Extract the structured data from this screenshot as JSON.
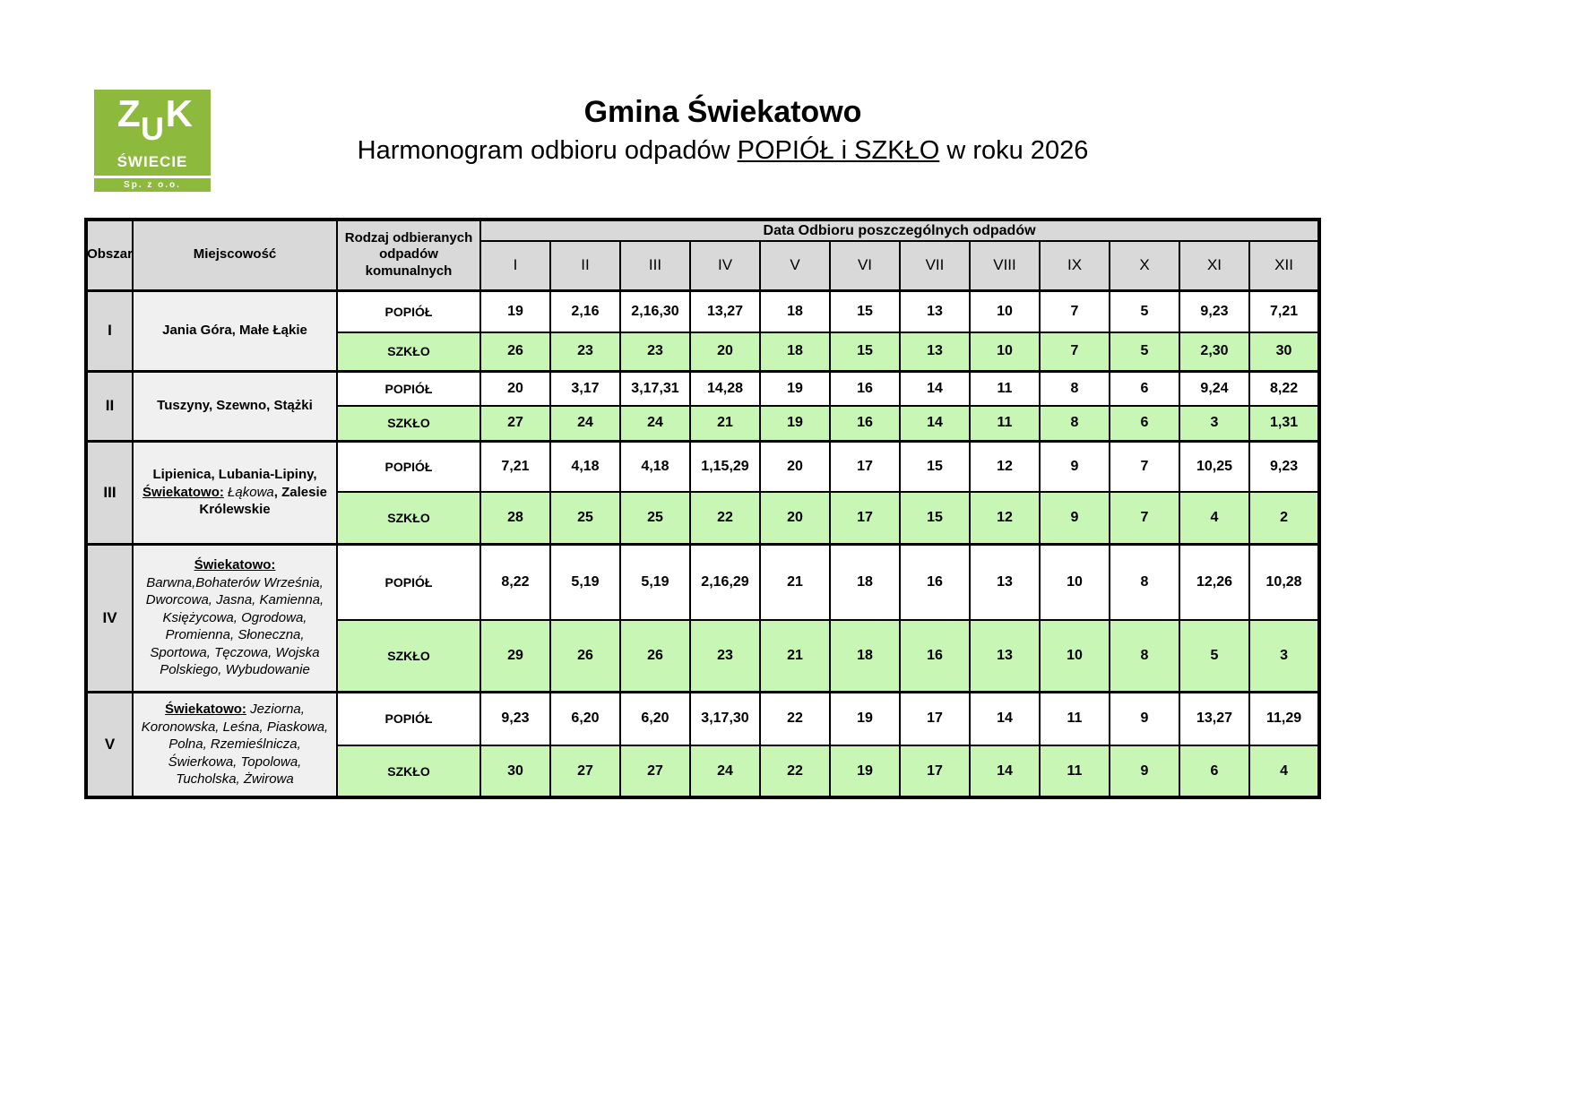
{
  "logo": {
    "letters": [
      "Z",
      "U",
      "K"
    ],
    "city": "ŚWIECIE",
    "company": "Sp.  z o.o.",
    "bg_color": "#8dba3c"
  },
  "header": {
    "title": "Gmina Świekatowo",
    "subtitle_prefix": "Harmonogram odbioru odpadów ",
    "subtitle_underlined": "POPIÓŁ i SZKŁO",
    "subtitle_suffix": " w roku 2026"
  },
  "table": {
    "headers": {
      "area": "Obszar",
      "place": "Miejscowość",
      "waste_type": "Rodzaj odbieranych odpadów komunalnych",
      "dates": "Data Odbioru poszczególnych odpadów"
    },
    "months": [
      "I",
      "II",
      "III",
      "IV",
      "V",
      "VI",
      "VII",
      "VIII",
      "IX",
      "X",
      "XI",
      "XII"
    ],
    "waste_labels": {
      "ash": "POPIÓŁ",
      "glass": "SZKŁO"
    },
    "colors": {
      "glass_row_bg": "#c8f6b4",
      "header_bg": "#d9d9d9",
      "place_col_bg": "#f0f0f0",
      "border": "#000000"
    },
    "rows": [
      {
        "area": "I",
        "place_segments": [
          {
            "t": "Jania Góra, Małe Łąkie",
            "b": true
          }
        ],
        "ash": [
          "19",
          "2,16",
          "2,16,30",
          "13,27",
          "18",
          "15",
          "13",
          "10",
          "7",
          "5",
          "9,23",
          "7,21"
        ],
        "glass": [
          "26",
          "23",
          "23",
          "20",
          "18",
          "15",
          "13",
          "10",
          "7",
          "5",
          "2,30",
          "30"
        ]
      },
      {
        "area": "II",
        "place_segments": [
          {
            "t": "Tuszyny, Szewno, Stążki",
            "b": true
          }
        ],
        "ash": [
          "20",
          "3,17",
          "3,17,31",
          "14,28",
          "19",
          "16",
          "14",
          "11",
          "8",
          "6",
          "9,24",
          "8,22"
        ],
        "glass": [
          "27",
          "24",
          "24",
          "21",
          "19",
          "16",
          "14",
          "11",
          "8",
          "6",
          "3",
          "1,31"
        ]
      },
      {
        "area": "III",
        "place_segments": [
          {
            "t": "Lipienica,  Lubania-Lipiny, ",
            "b": true
          },
          {
            "t": "Świekatowo:",
            "b": true,
            "u": true
          },
          {
            "t": " "
          },
          {
            "t": "Łąkowa",
            "i": true
          },
          {
            "t": ", ",
            "b": true
          },
          {
            "t": "Zalesie Królewskie",
            "b": true
          }
        ],
        "ash": [
          "7,21",
          "4,18",
          "4,18",
          "1,15,29",
          "20",
          "17",
          "15",
          "12",
          "9",
          "7",
          "10,25",
          "9,23"
        ],
        "glass": [
          "28",
          "25",
          "25",
          "22",
          "20",
          "17",
          "15",
          "12",
          "9",
          "7",
          "4",
          "2"
        ]
      },
      {
        "area": "IV",
        "place_segments": [
          {
            "t": "Świekatowo:",
            "b": true,
            "u": true,
            "nl": true
          },
          {
            "t": "Barwna,Bohaterów Września, Dworcowa, Jasna,  Kamienna, Księżycowa, Ogrodowa, Promienna, Słoneczna, Sportowa, Tęczowa, Wojska Polskiego, Wybudowanie",
            "i": true
          }
        ],
        "ash": [
          "8,22",
          "5,19",
          "5,19",
          "2,16,29",
          "21",
          "18",
          "16",
          "13",
          "10",
          "8",
          "12,26",
          "10,28"
        ],
        "glass": [
          "29",
          "26",
          "26",
          "23",
          "21",
          "18",
          "16",
          "13",
          "10",
          "8",
          "5",
          "3"
        ]
      },
      {
        "area": "V",
        "place_segments": [
          {
            "t": "Świekatowo:",
            "b": true,
            "u": true
          },
          {
            "t": " "
          },
          {
            "t": "Jeziorna, Koronowska, Leśna, Piaskowa, Polna, Rzemieślnicza, Świerkowa, Topolowa, Tucholska, Żwirowa",
            "i": true
          }
        ],
        "ash": [
          "9,23",
          "6,20",
          "6,20",
          "3,17,30",
          "22",
          "19",
          "17",
          "14",
          "11",
          "9",
          "13,27",
          "11,29"
        ],
        "glass": [
          "30",
          "27",
          "27",
          "24",
          "22",
          "19",
          "17",
          "14",
          "11",
          "9",
          "6",
          "4"
        ]
      }
    ]
  }
}
